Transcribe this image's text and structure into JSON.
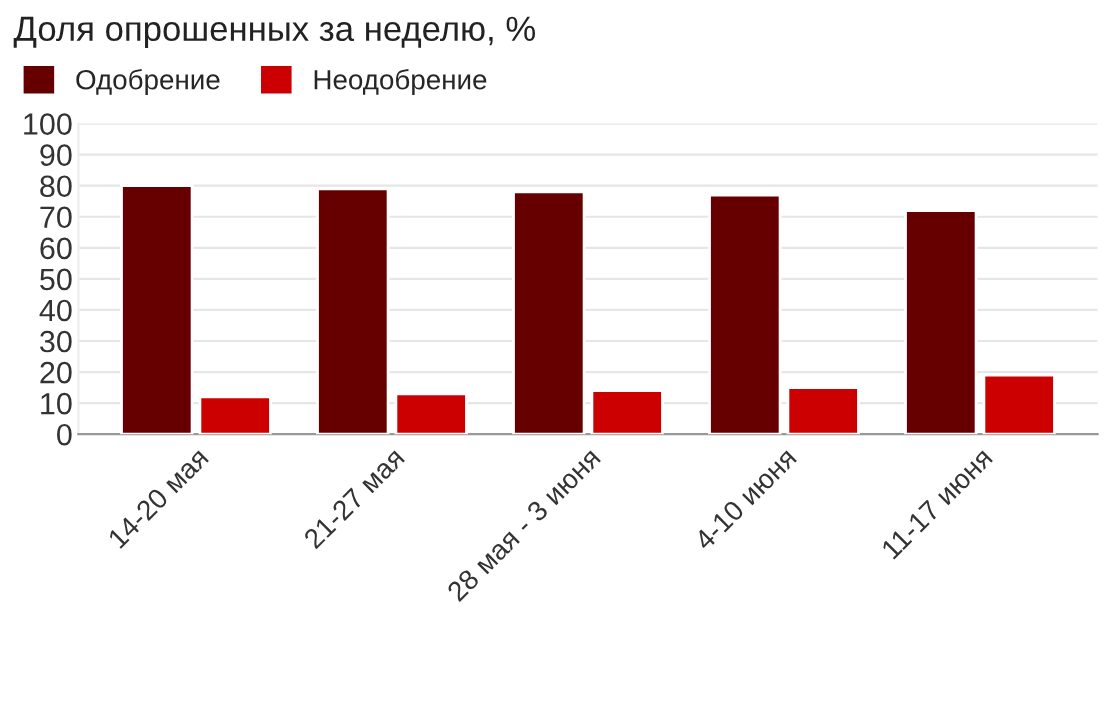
{
  "chart_data": {
    "type": "bar",
    "title": "Доля опрошенных за неделю, %",
    "categories": [
      "14-20 мая",
      "21-27 мая",
      "28 мая - 3 июня",
      "4-10 июня",
      "11-17 июня"
    ],
    "series": [
      {
        "name": "Одобрение",
        "color": "#660000",
        "values": [
          80,
          79,
          78,
          77,
          72
        ]
      },
      {
        "name": "Неодобрение",
        "color": "#cc0000",
        "values": [
          12,
          13,
          14,
          15,
          19
        ]
      }
    ],
    "ylim": [
      0,
      100
    ],
    "yticks": [
      0,
      10,
      20,
      30,
      40,
      50,
      60,
      70,
      80,
      90,
      100
    ],
    "grid": "y",
    "legend": "top left"
  }
}
